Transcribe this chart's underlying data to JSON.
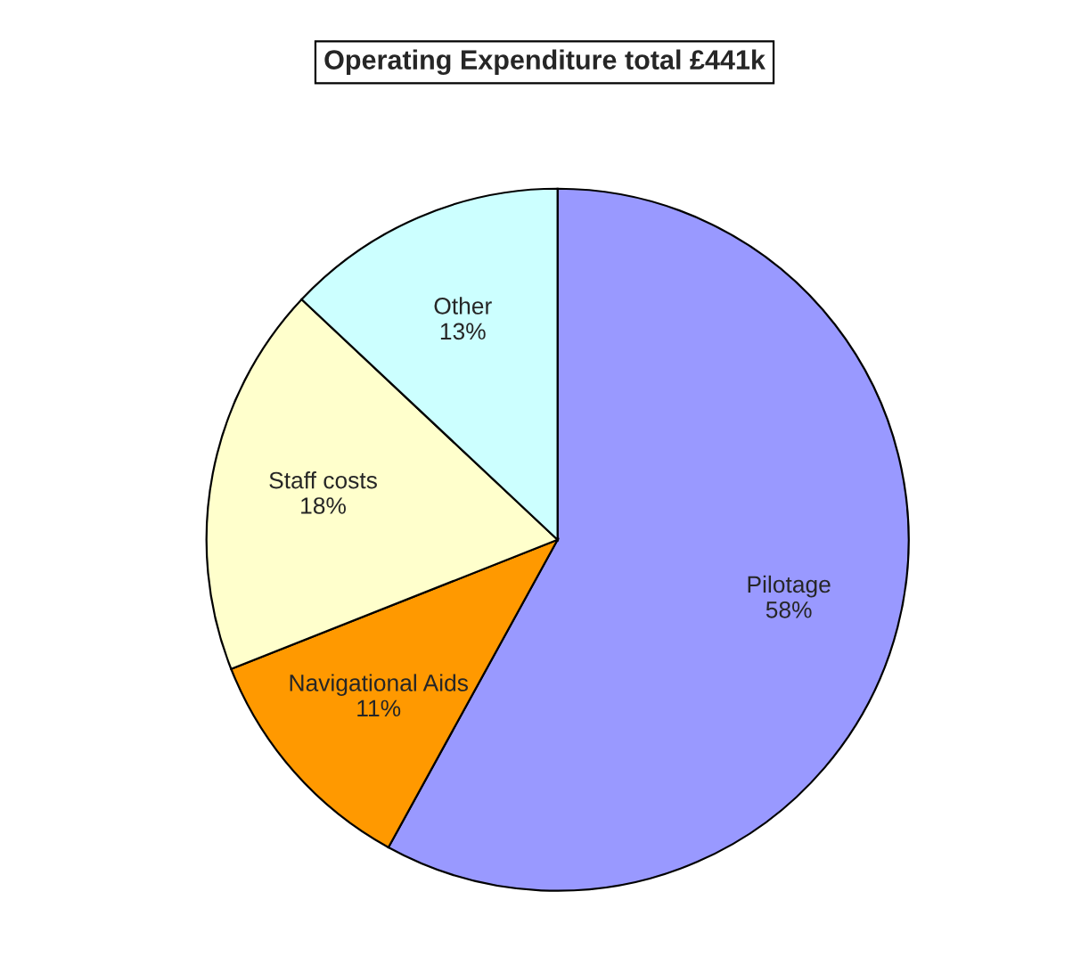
{
  "chart_data": {
    "type": "pie",
    "title": "Operating Expenditure total £441k",
    "categories": [
      "Pilotage",
      "Navigational Aids",
      "Staff costs",
      "Other"
    ],
    "values": [
      58,
      11,
      18,
      13
    ],
    "colors": [
      "#9999ff",
      "#ff9900",
      "#ffffcc",
      "#ccffff"
    ],
    "value_labels": [
      "58%",
      "11%",
      "18%",
      "13%"
    ]
  }
}
